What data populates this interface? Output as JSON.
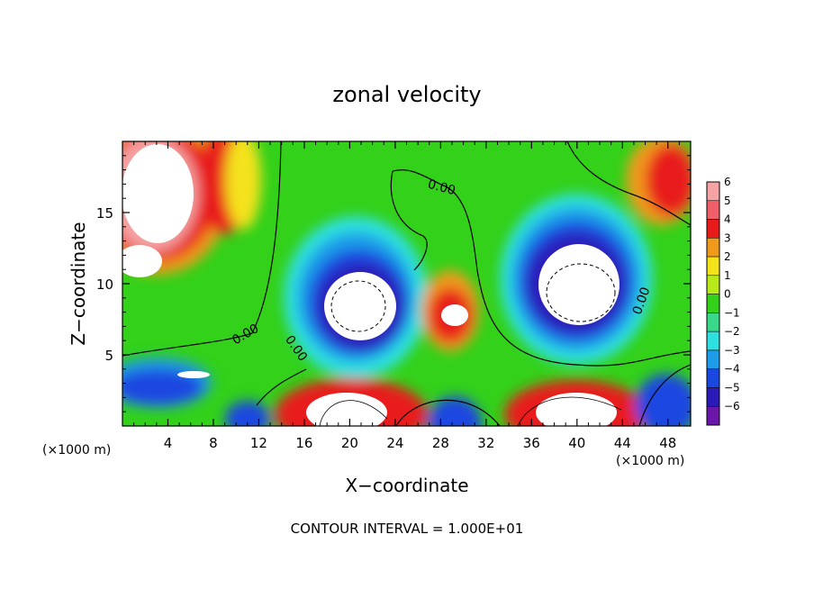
{
  "chart_data": {
    "type": "heatmap",
    "title": "zonal velocity",
    "xlabel": "X−coordinate",
    "ylabel": "Z−coordinate",
    "x_unit_note": "(×1000 m)",
    "y_unit_note": "(×1000 m)",
    "xlim": [
      0,
      50
    ],
    "ylim": [
      0,
      20
    ],
    "x_ticks": [
      "4",
      "8",
      "12",
      "16",
      "20",
      "24",
      "28",
      "32",
      "36",
      "40",
      "44",
      "48"
    ],
    "x_tick_values": [
      4,
      8,
      12,
      16,
      20,
      24,
      28,
      32,
      36,
      40,
      44,
      48
    ],
    "y_ticks": [
      "5",
      "10",
      "15"
    ],
    "y_tick_values": [
      5,
      10,
      15
    ],
    "colorbar": {
      "levels": [
        "6",
        "5",
        "4",
        "3",
        "2",
        "1",
        "0",
        "−1",
        "−2",
        "−3",
        "−4",
        "−5",
        "−6"
      ],
      "colors": [
        "#f5a3a3",
        "#ef5f6a",
        "#e81a1a",
        "#f09a1c",
        "#f4e21b",
        "#b8ea1a",
        "#33d11a",
        "#3ad98a",
        "#2ee0e0",
        "#1e9be8",
        "#1a47e0",
        "#2a1bb8",
        "#6a16a8"
      ]
    },
    "contour_labels": [
      {
        "text": "0.00",
        "x": 28,
        "z": 16.5
      },
      {
        "text": "0.00",
        "x": 11,
        "z": 6.2
      },
      {
        "text": "0.00",
        "x": 15,
        "z": 5.3
      },
      {
        "text": "0.00",
        "x": 46,
        "z": 8.7
      }
    ],
    "features": [
      {
        "kind": "negative core",
        "x": 21,
        "z": 9.5,
        "peak": -10
      },
      {
        "kind": "negative core",
        "x": 40,
        "z": 10,
        "peak": -10
      },
      {
        "kind": "positive core",
        "x": 3,
        "z": 16,
        "peak": 8
      },
      {
        "kind": "positive core",
        "x": 1,
        "z": 12.5,
        "peak": 7
      },
      {
        "kind": "positive core",
        "x": 30,
        "z": 8,
        "peak": 7
      },
      {
        "kind": "positive core",
        "x": 20,
        "z": 1.5,
        "peak": 9
      },
      {
        "kind": "positive core",
        "x": 40,
        "z": 1.5,
        "peak": 9
      }
    ],
    "annotation": "CONTOUR INTERVAL = 1.000E+01"
  }
}
